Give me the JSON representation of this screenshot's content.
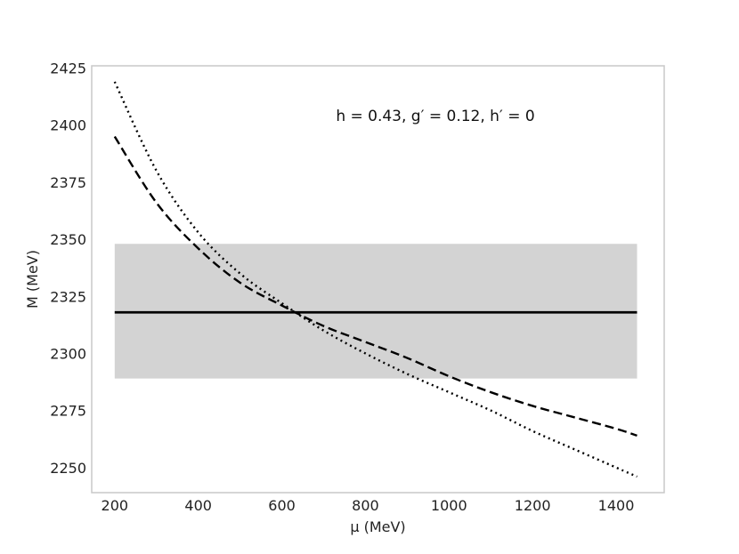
{
  "chart_data": {
    "type": "line",
    "xlabel": "μ (MeV)",
    "ylabel": "M (MeV)",
    "xlim": [
      145,
      1515
    ],
    "ylim": [
      2239,
      2426
    ],
    "xticks": [
      200,
      400,
      600,
      800,
      1000,
      1200,
      1400
    ],
    "yticks": [
      2250,
      2275,
      2300,
      2325,
      2350,
      2375,
      2400,
      2425
    ],
    "grid": false,
    "annotation": "h = 0.43, g′ = 0.12, h′ = 0",
    "band": {
      "x": [
        200,
        1450
      ],
      "y_low": 2289,
      "y_high": 2348,
      "color": "#d3d3d3"
    },
    "series": [
      {
        "style": "solid",
        "color": "#000000",
        "x": [
          200,
          1450
        ],
        "y": [
          2318,
          2318
        ]
      },
      {
        "style": "dashed",
        "color": "#000000",
        "x": [
          200,
          300,
          400,
          500,
          600,
          700,
          800,
          900,
          1000,
          1100,
          1200,
          1300,
          1400,
          1450
        ],
        "y": [
          2395,
          2366,
          2346,
          2331,
          2321,
          2312,
          2305,
          2298,
          2290,
          2283,
          2277,
          2272,
          2267,
          2264
        ]
      },
      {
        "style": "dotted",
        "color": "#000000",
        "x": [
          200,
          300,
          400,
          500,
          600,
          700,
          800,
          900,
          1000,
          1100,
          1200,
          1300,
          1400,
          1450
        ],
        "y": [
          2419,
          2380,
          2353,
          2335,
          2322,
          2310,
          2300,
          2291,
          2283,
          2275,
          2266,
          2258,
          2250,
          2246
        ]
      }
    ]
  }
}
